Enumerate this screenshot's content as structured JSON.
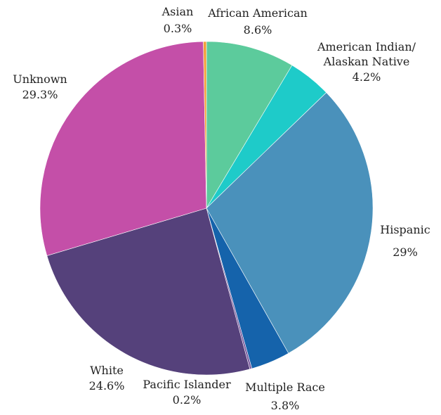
{
  "chart_data": {
    "type": "pie",
    "start_angle_deg": 0,
    "direction": "clockwise",
    "slices": [
      {
        "label": "African American",
        "value": 8.6,
        "value_label": "8.6%",
        "color": "#5ccb9c"
      },
      {
        "label": "American Indian/ Alaskan Native",
        "label_lines": [
          "American Indian/",
          "Alaskan Native"
        ],
        "value": 4.2,
        "value_label": "4.2%",
        "color": "#1ecbc9"
      },
      {
        "label": "Hispanic",
        "value": 29,
        "value_label": "29%",
        "color": "#4a91bb"
      },
      {
        "label": "Multiple Race",
        "value": 3.8,
        "value_label": "3.8%",
        "color": "#1563ab"
      },
      {
        "label": "Pacific Islander",
        "value": 0.2,
        "value_label": "0.2%",
        "color": "#7c5c9f"
      },
      {
        "label": "White",
        "value": 24.6,
        "value_label": "24.6%",
        "color": "#55417b"
      },
      {
        "label": "Unknown",
        "value": 29.3,
        "value_label": "29.3%",
        "color": "#c44fa8"
      },
      {
        "label": "Asian",
        "value": 0.3,
        "value_label": "0.3%",
        "color": "#f2a23a"
      }
    ]
  }
}
